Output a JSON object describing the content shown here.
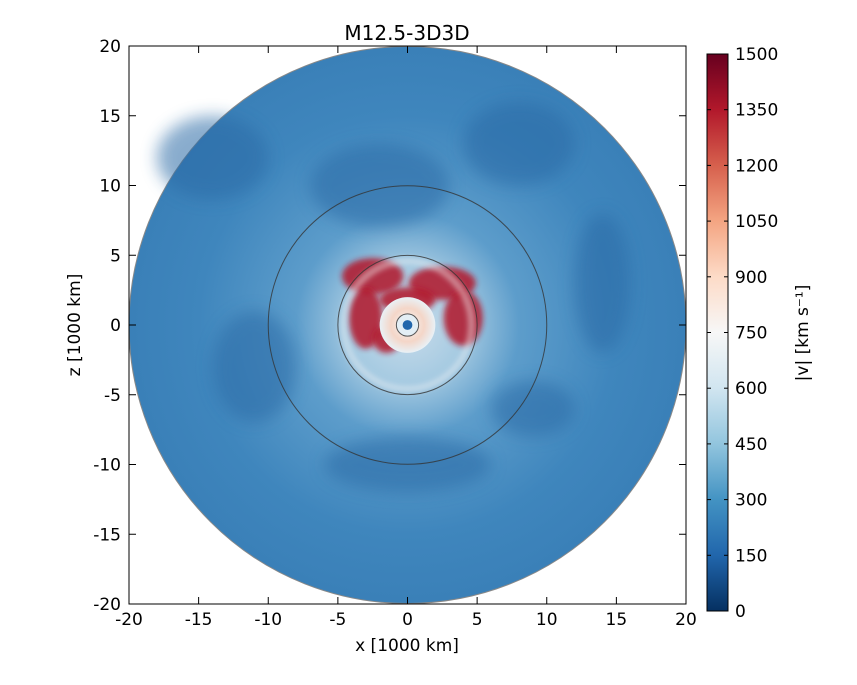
{
  "chart_data": {
    "type": "heatmap",
    "title": "M12.5-3D3D",
    "xlabel": "x [1000 km]",
    "ylabel": "z [1000 km]",
    "xlim": [
      -20,
      20
    ],
    "ylim": [
      -20,
      20
    ],
    "x_ticks": [
      "-20",
      "-15",
      "-10",
      "-5",
      "0",
      "5",
      "10",
      "15",
      "20"
    ],
    "y_ticks": [
      "-20",
      "-15",
      "-10",
      "-5",
      "0",
      "5",
      "10",
      "15",
      "20"
    ],
    "x_tick_values": [
      -20,
      -15,
      -10,
      -5,
      0,
      5,
      10,
      15,
      20
    ],
    "y_tick_values": [
      -20,
      -15,
      -10,
      -5,
      0,
      5,
      10,
      15,
      20
    ],
    "grid": false,
    "domain_radius": 20,
    "reference_circles_radius": [
      5,
      10
    ],
    "colorbar": {
      "label": "|v| [km s⁻¹]",
      "min": 0,
      "max": 1500,
      "ticks": [
        "0",
        "150",
        "300",
        "450",
        "600",
        "750",
        "900",
        "1050",
        "1200",
        "1350",
        "1500"
      ],
      "tick_values": [
        0,
        150,
        300,
        450,
        600,
        750,
        900,
        1050,
        1200,
        1350,
        1500
      ],
      "colormap": [
        "#053061",
        "#2166ac",
        "#4393c3",
        "#92c5de",
        "#d1e5f0",
        "#f7f7f7",
        "#fddbc7",
        "#f4a582",
        "#d6604d",
        "#b2182b",
        "#67001f"
      ]
    },
    "velocity_field_description_values": {
      "outer_shell_typical": 280,
      "inner_hot_region_peak": 1450
    }
  }
}
